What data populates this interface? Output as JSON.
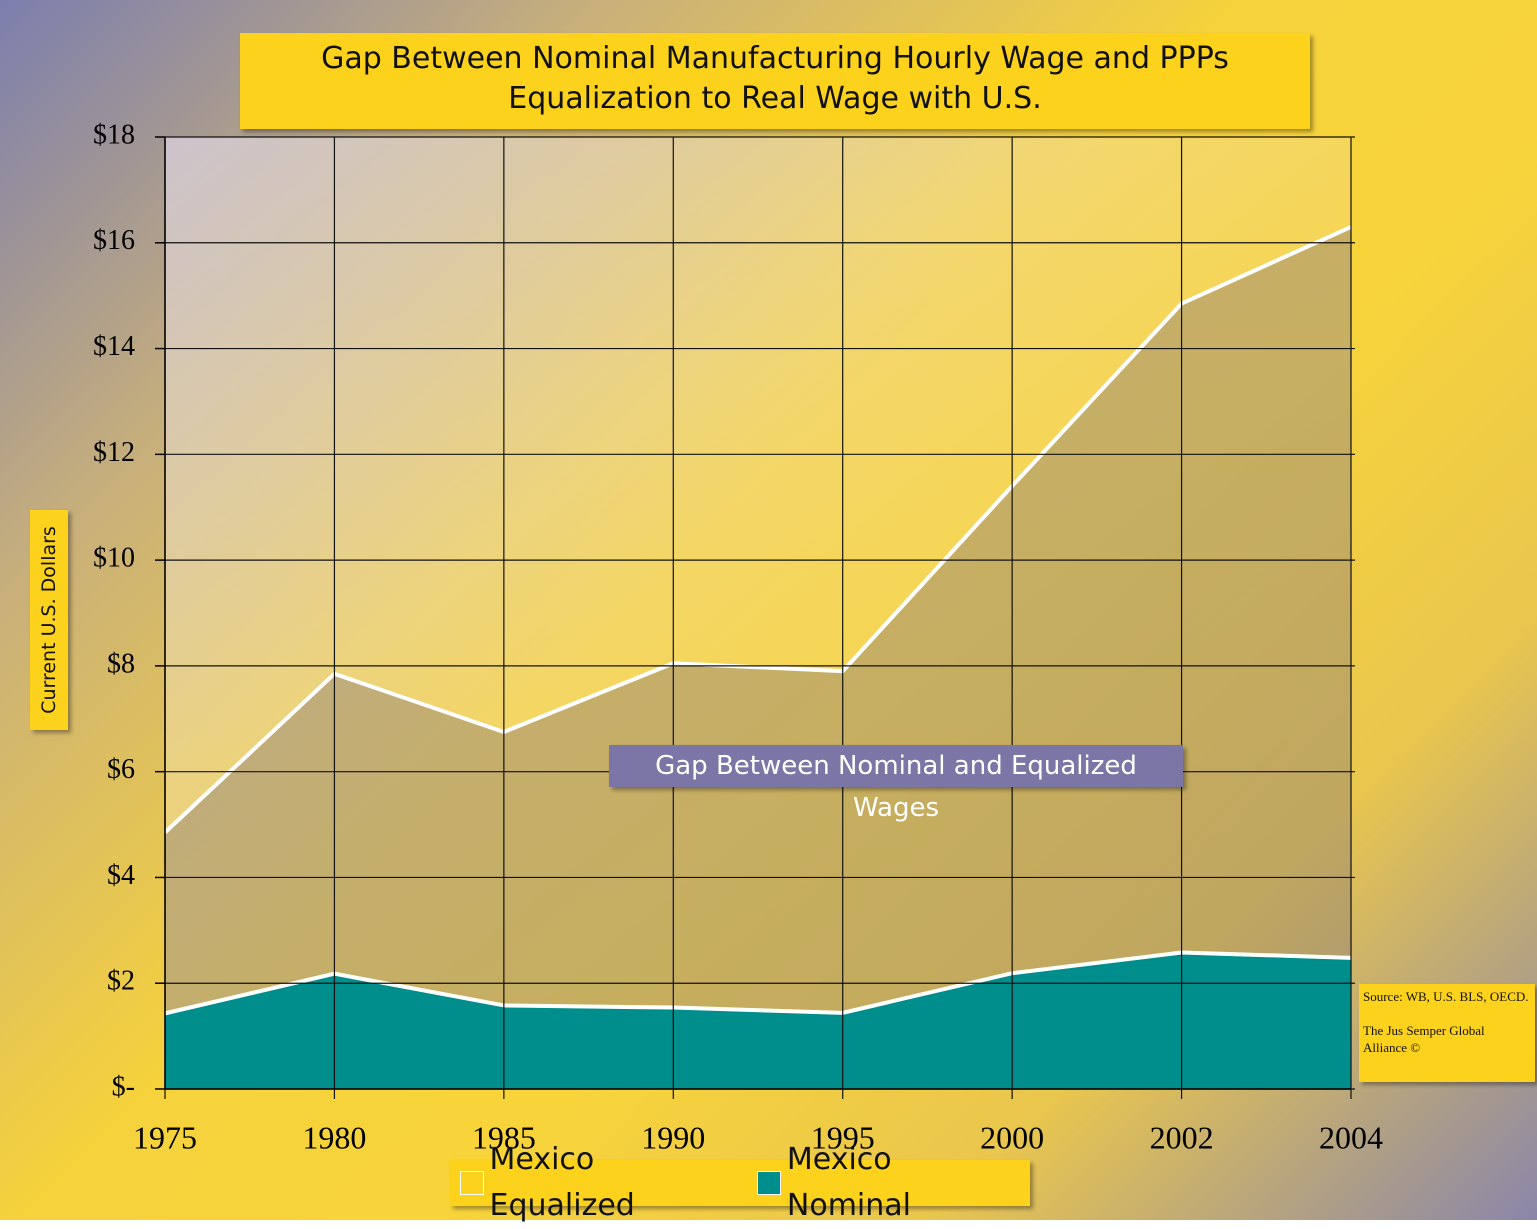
{
  "chart_data": {
    "type": "area",
    "title": "Gap Between Nominal Manufacturing Hourly Wage and PPPs Equalization to Real Wage with U.S.",
    "y_label": "Current U.S. Dollars",
    "annotation": "Gap Between Nominal and Equalized Wages",
    "source": [
      "Source: WB, U.S. BLS, OECD.",
      "The Jus Semper Global Alliance ©"
    ],
    "categories": [
      "1975",
      "1980",
      "1985",
      "1990",
      "1995",
      "2000",
      "2002",
      "2004"
    ],
    "series": [
      {
        "name": "Mexico Equalized",
        "color": "#8c7f78",
        "values": [
          4.85,
          7.85,
          6.75,
          8.05,
          7.9,
          11.4,
          14.85,
          16.3
        ]
      },
      {
        "name": "Mexico Nominal",
        "color": "#008e8c",
        "values": [
          1.43,
          2.18,
          1.58,
          1.54,
          1.44,
          2.19,
          2.58,
          2.48
        ]
      }
    ],
    "ylim": [
      0,
      18
    ],
    "yticks": [
      {
        "value": 0,
        "label": "$-"
      },
      {
        "value": 2,
        "label": "$2"
      },
      {
        "value": 4,
        "label": "$4"
      },
      {
        "value": 6,
        "label": "$6"
      },
      {
        "value": 8,
        "label": "$8"
      },
      {
        "value": 10,
        "label": "$10"
      },
      {
        "value": 12,
        "label": "$12"
      },
      {
        "value": 14,
        "label": "$14"
      },
      {
        "value": 16,
        "label": "$16"
      },
      {
        "value": 18,
        "label": "$18"
      }
    ],
    "grid": true
  }
}
